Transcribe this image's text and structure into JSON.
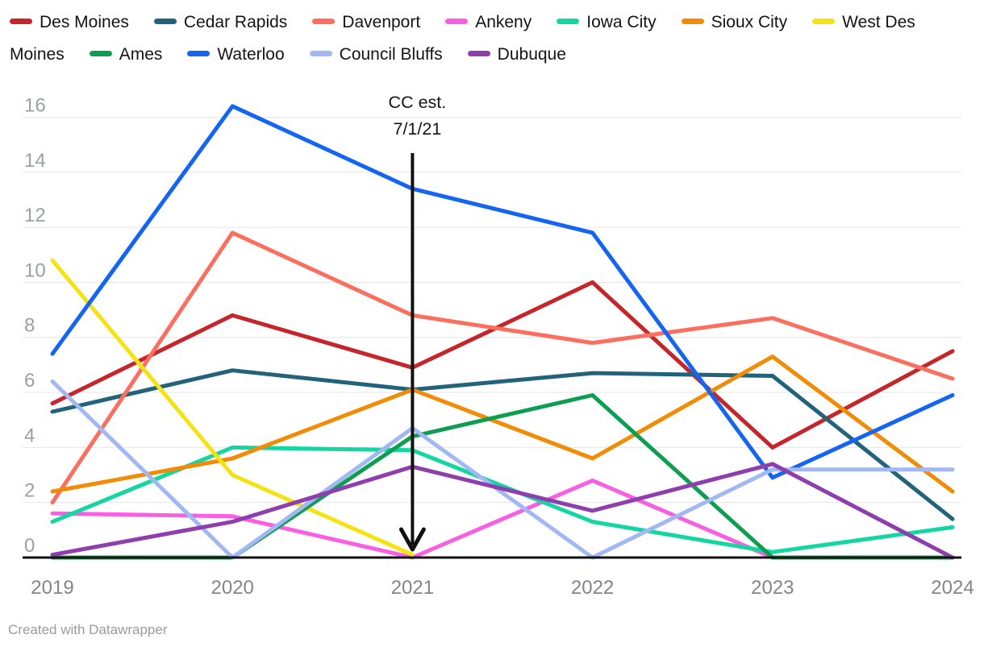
{
  "footer": {
    "text": "Created with Datawrapper"
  },
  "annotation": {
    "line1": "CC est.",
    "line2": "7/1/21",
    "year": 2021
  },
  "axis": {
    "text_color_y": "#9aa0a6",
    "text_color_x": "#858585",
    "grid_color": "#e6e6e6",
    "baseline_color": "#111111"
  },
  "chart_data": {
    "type": "line",
    "title": "",
    "xlabel": "",
    "ylabel": "",
    "x": [
      2019,
      2020,
      2021,
      2022,
      2023,
      2024
    ],
    "ylim": [
      0,
      16
    ],
    "ytick_step": 2,
    "grid": true,
    "legend_position": "top",
    "annotation": "CC est. 7/1/21 — vertical arrow at x = 2021",
    "series": [
      {
        "name": "Des Moines",
        "color": "#c4262b",
        "values": [
          5.6,
          8.8,
          6.9,
          10.0,
          4.0,
          7.5
        ]
      },
      {
        "name": "Cedar Rapids",
        "color": "#20637a",
        "values": [
          5.3,
          6.8,
          6.1,
          6.7,
          6.6,
          1.4
        ]
      },
      {
        "name": "Davenport",
        "color": "#fc6f5f",
        "values": [
          2.0,
          11.8,
          8.8,
          7.8,
          8.7,
          6.5
        ]
      },
      {
        "name": "Ankeny",
        "color": "#f95fe3",
        "values": [
          1.6,
          1.5,
          0.0,
          2.8,
          0.0,
          null
        ]
      },
      {
        "name": "Iowa City",
        "color": "#14d6a0",
        "values": [
          1.3,
          4.0,
          3.9,
          1.3,
          0.2,
          1.1
        ]
      },
      {
        "name": "Sioux City",
        "color": "#f28b05",
        "values": [
          2.4,
          3.6,
          6.1,
          3.6,
          7.3,
          2.4
        ]
      },
      {
        "name": "West Des Moines",
        "color": "#f5e211",
        "values": [
          10.8,
          3.0,
          0.1,
          null,
          null,
          null
        ]
      },
      {
        "name": "Ames",
        "color": "#0d9e51",
        "values": [
          0.0,
          0.0,
          4.4,
          5.9,
          0.0,
          0.0
        ]
      },
      {
        "name": "Waterloo",
        "color": "#1465f2",
        "values": [
          7.4,
          16.4,
          13.4,
          11.8,
          2.9,
          5.9
        ]
      },
      {
        "name": "Council Bluffs",
        "color": "#a1b8f2",
        "values": [
          6.4,
          0.0,
          4.7,
          0.0,
          3.2,
          3.2
        ]
      },
      {
        "name": "Dubuque",
        "color": "#8f3fad",
        "values": [
          0.1,
          1.3,
          3.3,
          1.7,
          3.4,
          0.0
        ]
      }
    ]
  }
}
